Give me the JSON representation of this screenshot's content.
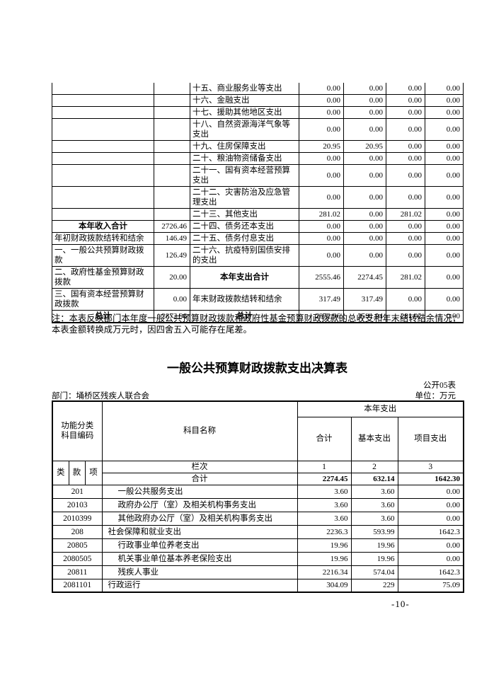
{
  "table1": {
    "rows": [
      {
        "left_label": "",
        "left_value": "",
        "right_label": "十五、商业服务业等支出",
        "values": [
          "0.00",
          "0.00",
          "0.00",
          "0.00"
        ]
      },
      {
        "left_label": "",
        "left_value": "",
        "right_label": "十六、金融支出",
        "values": [
          "0.00",
          "0.00",
          "0.00",
          "0.00"
        ]
      },
      {
        "left_label": "",
        "left_value": "",
        "right_label": "十七、援助其他地区支出",
        "values": [
          "0.00",
          "0.00",
          "0.00",
          "0.00"
        ]
      },
      {
        "left_label": "",
        "left_value": "",
        "right_label": "十八、自然资源海洋气象等支出",
        "values": [
          "0.00",
          "0.00",
          "0.00",
          "0.00"
        ]
      },
      {
        "left_label": "",
        "left_value": "",
        "right_label": "十九、住房保障支出",
        "values": [
          "20.95",
          "20.95",
          "0.00",
          "0.00"
        ]
      },
      {
        "left_label": "",
        "left_value": "",
        "right_label": "二十、粮油物资储备支出",
        "values": [
          "0.00",
          "0.00",
          "0.00",
          "0.00"
        ]
      },
      {
        "left_label": "",
        "left_value": "",
        "right_label": "二十一、国有资本经营预算支出",
        "values": [
          "0.00",
          "0.00",
          "0.00",
          "0.00"
        ]
      },
      {
        "left_label": "",
        "left_value": "",
        "right_label": "二十二、灾害防治及应急管理支出",
        "values": [
          "0.00",
          "0.00",
          "0.00",
          "0.00"
        ]
      },
      {
        "left_label": "",
        "left_value": "",
        "right_label": "二十三、其他支出",
        "values": [
          "281.02",
          "0.00",
          "281.02",
          "0.00"
        ]
      },
      {
        "left_label": "本年收入合计",
        "left_bold": true,
        "left_value": "2726.46",
        "right_label": "二十四、债务还本支出",
        "values": [
          "0.00",
          "0.00",
          "0.00",
          "0.00"
        ]
      },
      {
        "left_label": "年初财政拨款结转和结余",
        "left_value": "146.49",
        "right_label": "二十五、债务付息支出",
        "values": [
          "0.00",
          "0.00",
          "0.00",
          "0.00"
        ]
      },
      {
        "left_label": "一、一般公共预算财政拨款",
        "left_value": "126.49",
        "right_label": "二十六、抗疫特别国债安排的支出",
        "values": [
          "0.00",
          "0.00",
          "0.00",
          "0.00"
        ]
      },
      {
        "left_label": "二、政府性基金预算财政拨款",
        "left_value": "20.00",
        "right_label": "本年支出合计",
        "right_bold": true,
        "values": [
          "2555.46",
          "2274.45",
          "281.02",
          "0.00"
        ]
      },
      {
        "left_label": "三、国有资本经营预算财政拨款",
        "left_value": "0.00",
        "right_label": "年末财政拨款结转和结余",
        "values": [
          "317.49",
          "317.49",
          "0.00",
          "0.00"
        ]
      },
      {
        "left_label": "总计",
        "left_bold": true,
        "left_value": "2872.96",
        "right_label": "总计",
        "right_bold": true,
        "values": [
          "2872.96",
          "2591.94",
          "281.02",
          "0.00"
        ]
      }
    ],
    "note": "注：本表反映部门本年度一般公共预算财政拨款和政府性基金预算财政拨款的总收支和年末结转结余情况；本表金额转换成万元时，因四舍五入可能存在尾差。"
  },
  "table2": {
    "title": "一般公共预算财政拨款支出决算表",
    "table_code": "公开05表",
    "department": "部门：埇桥区残疾人联合会",
    "unit": "单位：万元",
    "header": {
      "code": "功能分类\n科目编码",
      "subject": "科目名称",
      "year_expense": "本年支出",
      "total": "合计",
      "basic": "基本支出",
      "project": "项目支出",
      "col_class": "类",
      "col_clause": "款",
      "col_item": "项",
      "column_row": "栏次",
      "col1": "1",
      "col2": "2",
      "col3": "3"
    },
    "total_row": {
      "label": "合计",
      "values": [
        "2274.45",
        "632.14",
        "1642.30"
      ]
    },
    "rows": [
      {
        "code": "201",
        "name": "一般公共服务支出",
        "indent": 1,
        "values": [
          "3.60",
          "3.60",
          "0.00"
        ]
      },
      {
        "code": "20103",
        "name": "政府办公厅（室）及相关机构事务支出",
        "indent": 1,
        "values": [
          "3.60",
          "3.60",
          "0.00"
        ]
      },
      {
        "code": "2010399",
        "name": "其他政府办公厅（室）及相关机构事务支出",
        "indent": 1,
        "values": [
          "3.60",
          "3.60",
          "0.00"
        ]
      },
      {
        "code": "208",
        "name": "社会保障和就业支出",
        "indent": 0,
        "values": [
          "2236.3",
          "593.99",
          "1642.3"
        ]
      },
      {
        "code": "20805",
        "name": "行政事业单位养老支出",
        "indent": 1,
        "values": [
          "19.96",
          "19.96",
          "0.00"
        ]
      },
      {
        "code": "2080505",
        "name": "机关事业单位基本养老保险支出",
        "indent": 1,
        "values": [
          "19.96",
          "19.96",
          "0.00"
        ]
      },
      {
        "code": "20811",
        "name": "残疾人事业",
        "indent": 1,
        "values": [
          "2216.34",
          "574.04",
          "1642.3"
        ]
      },
      {
        "code": "2081101",
        "name": "行政运行",
        "indent": 0,
        "values": [
          "304.09",
          "229",
          "75.09"
        ]
      }
    ]
  },
  "page_number": "-10-"
}
